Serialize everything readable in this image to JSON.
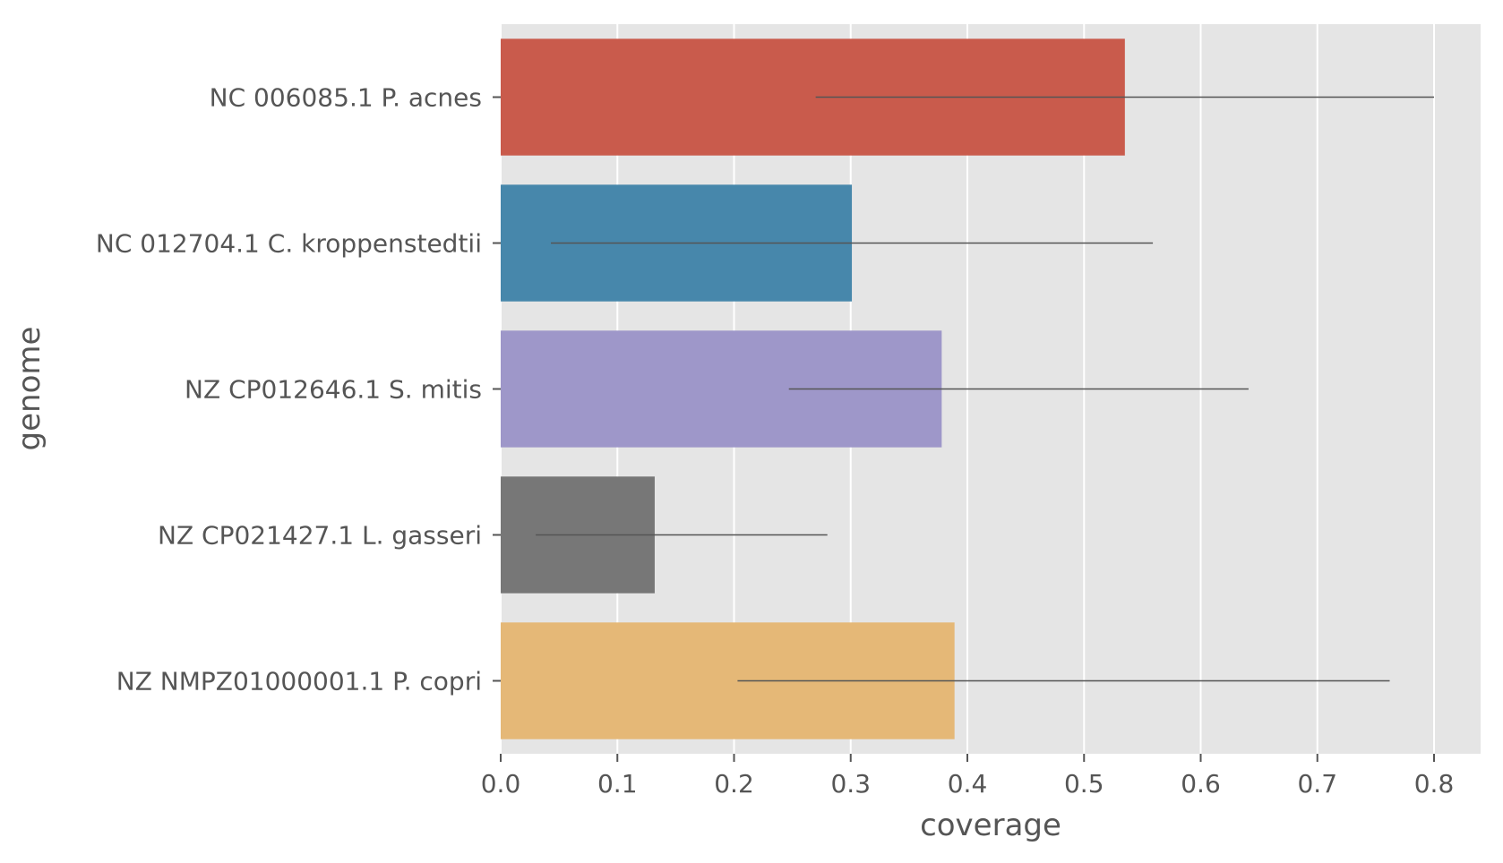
{
  "chart_data": {
    "type": "bar",
    "orientation": "horizontal",
    "title": "",
    "xlabel": "coverage",
    "ylabel": "genome",
    "xlim": [
      0,
      0.838
    ],
    "xticks": [
      "0.0",
      "0.1",
      "0.2",
      "0.3",
      "0.4",
      "0.5",
      "0.6",
      "0.7",
      "0.8"
    ],
    "grid": true,
    "style": "ggplot",
    "categories": [
      "NC 006085.1 P. acnes",
      "NC 012704.1 C. kroppenstedtii",
      "NZ CP012646.1 S. mitis",
      "NZ CP021427.1 L. gasseri",
      "NZ NMPZ01000001.1 P. copri"
    ],
    "values": [
      0.535,
      0.301,
      0.378,
      0.132,
      0.389
    ],
    "error_low": [
      0.27,
      0.043,
      0.247,
      0.03,
      0.203
    ],
    "error_high": [
      0.8,
      0.559,
      0.641,
      0.28,
      0.762
    ],
    "colors": [
      "#c95b4c",
      "#4787ab",
      "#9e97c9",
      "#777777",
      "#e5b877"
    ],
    "background_color": "#e5e5e5",
    "grid_color": "#ffffff",
    "error_bar_color": "#555555"
  }
}
